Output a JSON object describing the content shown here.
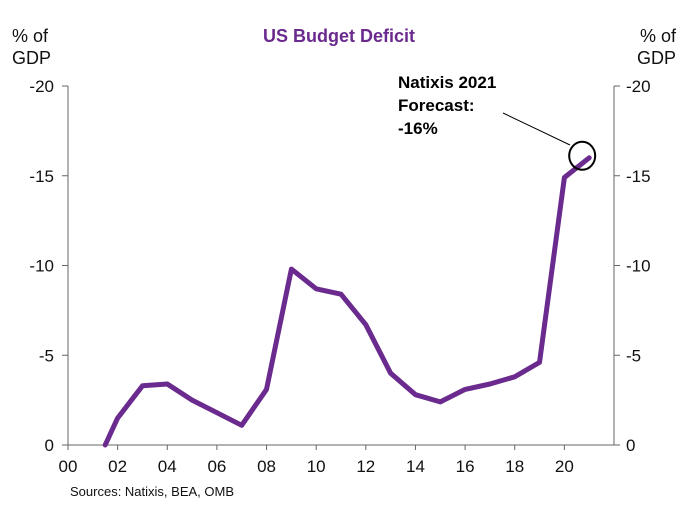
{
  "chart_data": {
    "type": "line",
    "title": "US Budget Deficit",
    "left_unit": [
      "% of",
      "GDP"
    ],
    "right_unit": [
      "% of",
      "GDP"
    ],
    "source": "Sources:  Natixis, BEA, OMB",
    "annotation": [
      "Natixis 2021",
      "Forecast:",
      "-16%"
    ],
    "ylim": [
      0,
      -20
    ],
    "yticks": [
      0,
      -5,
      -10,
      -15,
      -20
    ],
    "ytick_labels": [
      "0",
      "-5",
      "-10",
      "-15",
      "-20"
    ],
    "xlim": [
      2000,
      2022
    ],
    "xticks": [
      2000,
      2002,
      2004,
      2006,
      2008,
      2010,
      2012,
      2014,
      2016,
      2018,
      2020
    ],
    "xtick_labels": [
      "00",
      "02",
      "04",
      "06",
      "08",
      "10",
      "12",
      "14",
      "16",
      "18",
      "20"
    ],
    "series": [
      {
        "name": "US Budget Deficit",
        "color": "#6a2a8e",
        "x": [
          2001.5,
          2002,
          2003,
          2004,
          2005,
          2006,
          2007,
          2008,
          2009,
          2010,
          2011,
          2012,
          2013,
          2014,
          2015,
          2016,
          2017,
          2018,
          2019,
          2020,
          2021
        ],
        "values": [
          0.0,
          -1.5,
          -3.3,
          -3.4,
          -2.5,
          -1.8,
          -1.1,
          -3.1,
          -9.8,
          -8.7,
          -8.4,
          -6.7,
          -4.0,
          -2.8,
          -2.4,
          -3.1,
          -3.4,
          -3.8,
          -4.6,
          -14.9,
          -16.0
        ]
      }
    ],
    "highlight_point": {
      "x": 2021,
      "y": -16
    },
    "title_color": "#6a2a8e"
  }
}
